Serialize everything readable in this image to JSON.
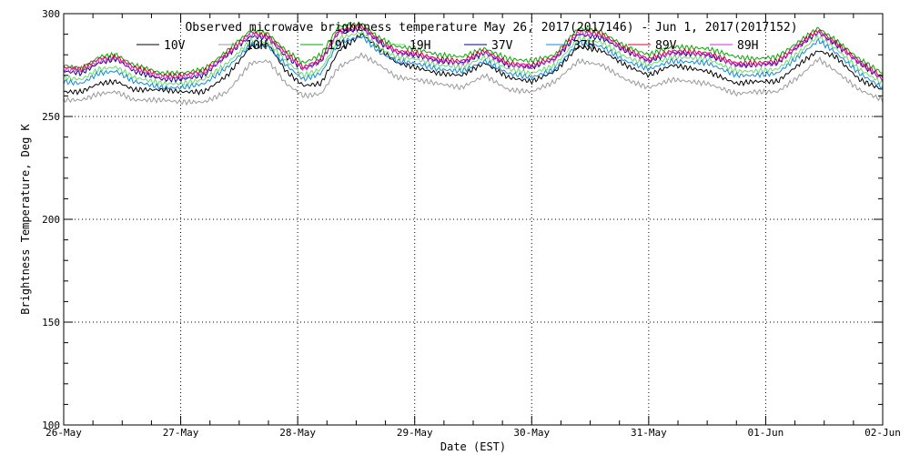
{
  "chart_data": {
    "type": "line",
    "title": "Observed microwave brightness temperature May 26, 2017(2017146) - Jun  1, 2017(2017152)",
    "xlabel": "Date (EST)",
    "ylabel": "Brightness Temperature, Deg K",
    "xlim": [
      0,
      7
    ],
    "ylim": [
      100,
      300
    ],
    "x_ticks": [
      {
        "value": 0,
        "label": "26-May"
      },
      {
        "value": 1,
        "label": "27-May"
      },
      {
        "value": 2,
        "label": "28-May"
      },
      {
        "value": 3,
        "label": "29-May"
      },
      {
        "value": 4,
        "label": "30-May"
      },
      {
        "value": 5,
        "label": "31-May"
      },
      {
        "value": 6,
        "label": "01-Jun"
      },
      {
        "value": 7,
        "label": "02-Jun"
      }
    ],
    "y_ticks": [
      {
        "value": 100,
        "label": "100"
      },
      {
        "value": 150,
        "label": "150"
      },
      {
        "value": 200,
        "label": "200"
      },
      {
        "value": 250,
        "label": "250"
      },
      {
        "value": 300,
        "label": "300"
      }
    ],
    "grid": "dotted",
    "x": [
      0,
      0.15,
      0.3,
      0.45,
      0.6,
      0.85,
      1.0,
      1.2,
      1.4,
      1.6,
      1.75,
      1.9,
      2.05,
      2.2,
      2.35,
      2.55,
      2.7,
      2.85,
      3.0,
      3.2,
      3.4,
      3.6,
      3.8,
      4.0,
      4.2,
      4.4,
      4.6,
      4.8,
      5.0,
      5.2,
      5.5,
      5.75,
      5.9,
      6.1,
      6.3,
      6.45,
      6.6,
      6.8,
      7.0
    ],
    "series": [
      {
        "name": "10V",
        "color": "#000000",
        "values": [
          262,
          262,
          266,
          267,
          263,
          263,
          262,
          262,
          270,
          284,
          285,
          272,
          265,
          266,
          282,
          290,
          283,
          276,
          274,
          271,
          270,
          276,
          269,
          267,
          272,
          284,
          282,
          275,
          270,
          275,
          272,
          266,
          267,
          267,
          276,
          282,
          279,
          268,
          263
        ]
      },
      {
        "name": "10H",
        "color": "#999999",
        "values": [
          258,
          258,
          261,
          262,
          258,
          258,
          257,
          257,
          262,
          276,
          277,
          266,
          260,
          261,
          274,
          280,
          275,
          269,
          268,
          266,
          264,
          270,
          263,
          262,
          267,
          277,
          275,
          268,
          264,
          268,
          266,
          261,
          262,
          262,
          270,
          278,
          272,
          263,
          258
        ]
      },
      {
        "name": "19V",
        "color": "#00aa00",
        "values": [
          275,
          273,
          279,
          280,
          275,
          271,
          271,
          273,
          282,
          292,
          290,
          282,
          276,
          280,
          294,
          295,
          288,
          284,
          283,
          280,
          279,
          283,
          278,
          277,
          280,
          293,
          291,
          284,
          280,
          284,
          283,
          279,
          278,
          279,
          287,
          293,
          287,
          278,
          271
        ]
      },
      {
        "name": "19H",
        "color": "#66dd66",
        "values": [
          269,
          268,
          273,
          274,
          269,
          266,
          266,
          268,
          276,
          287,
          286,
          277,
          270,
          273,
          288,
          291,
          283,
          279,
          278,
          275,
          274,
          279,
          273,
          271,
          275,
          288,
          286,
          279,
          275,
          279,
          278,
          272,
          272,
          273,
          282,
          289,
          283,
          273,
          266
        ]
      },
      {
        "name": "37V",
        "color": "#000088",
        "values": [
          272,
          271,
          276,
          278,
          272,
          268,
          268,
          270,
          280,
          289,
          288,
          279,
          273,
          277,
          291,
          293,
          286,
          281,
          280,
          277,
          276,
          281,
          275,
          274,
          278,
          290,
          288,
          282,
          277,
          281,
          280,
          275,
          275,
          276,
          285,
          291,
          285,
          276,
          268
        ]
      },
      {
        "name": "37H",
        "color": "#1188dd",
        "values": [
          267,
          266,
          271,
          272,
          267,
          264,
          264,
          266,
          274,
          285,
          284,
          275,
          268,
          271,
          286,
          289,
          281,
          277,
          276,
          273,
          272,
          277,
          271,
          269,
          273,
          286,
          284,
          277,
          273,
          277,
          276,
          270,
          270,
          271,
          280,
          287,
          281,
          271,
          264
        ]
      },
      {
        "name": "89V",
        "color": "#dd0033",
        "values": [
          274,
          273,
          278,
          279,
          274,
          270,
          270,
          272,
          281,
          291,
          289,
          281,
          274,
          278,
          292,
          294,
          287,
          282,
          281,
          278,
          277,
          282,
          276,
          275,
          279,
          292,
          290,
          283,
          278,
          282,
          281,
          276,
          276,
          277,
          286,
          292,
          286,
          277,
          269
        ]
      },
      {
        "name": "89H",
        "color": "#cc33cc",
        "values": [
          273,
          272,
          277,
          278,
          273,
          269,
          269,
          271,
          280,
          290,
          288,
          280,
          273,
          277,
          291,
          293,
          286,
          281,
          280,
          277,
          276,
          281,
          275,
          274,
          278,
          291,
          289,
          282,
          277,
          281,
          280,
          275,
          275,
          276,
          285,
          291,
          285,
          276,
          268
        ]
      }
    ]
  }
}
